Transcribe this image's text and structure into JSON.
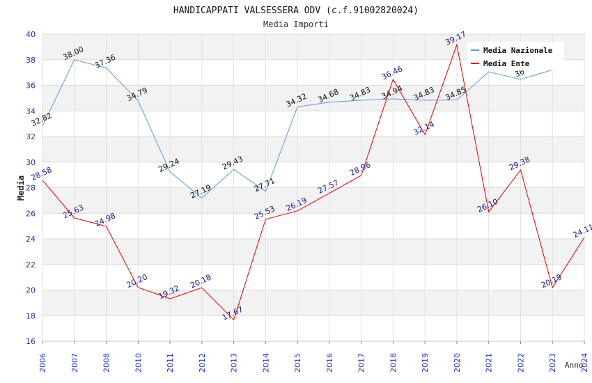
{
  "chart_data": {
    "type": "line",
    "title": "HANDICAPPATI VALSESSERA ODV (c.f.91002820024)",
    "subtitle": "Media Importi",
    "xlabel": "Anno",
    "ylabel": "Media",
    "ylim": [
      16,
      40
    ],
    "yticks": [
      "16",
      "18",
      "20",
      "22",
      "24",
      "26",
      "28",
      "30",
      "32",
      "34",
      "36",
      "38",
      "40"
    ],
    "categories": [
      "2006",
      "2007",
      "2008",
      "2010",
      "2011",
      "2012",
      "2013",
      "2014",
      "2015",
      "2016",
      "2017",
      "2018",
      "2019",
      "2020",
      "2021",
      "2022",
      "2023",
      "2024"
    ],
    "grid": true,
    "legend_position": "top-right",
    "series": [
      {
        "name": "Media Nazionale",
        "color": "#5b9bd5",
        "label_color": "#111111",
        "values": [
          32.82,
          38.0,
          37.36,
          34.79,
          29.24,
          27.19,
          29.43,
          27.71,
          34.32,
          34.68,
          34.83,
          34.94,
          34.83,
          34.85,
          37.05,
          36.46,
          37.2,
          null
        ],
        "labels": [
          "32.82",
          "38.00",
          "37.36",
          "34.79",
          "29.24",
          "27.19",
          "29.43",
          "27.71",
          "34.32",
          "34.68",
          "34.83",
          "34.94",
          "34.83",
          "34.85",
          "",
          "36",
          "",
          ""
        ]
      },
      {
        "name": "Media Ente",
        "color": "#e00000",
        "label_color": "#1a1a8c",
        "values": [
          28.58,
          25.63,
          24.98,
          20.2,
          19.32,
          20.18,
          17.67,
          25.53,
          26.19,
          27.57,
          28.96,
          36.46,
          32.14,
          39.17,
          26.1,
          29.38,
          20.19,
          24.11
        ],
        "labels": [
          "28.58",
          "25.63",
          "24.98",
          "20.20",
          "19.32",
          "20.18",
          "17.67",
          "25.53",
          "26.19",
          "27.57",
          "28.96",
          "36.46",
          "32.14",
          "39.17",
          "26.10",
          "29.38",
          "20.19",
          "24.11"
        ]
      }
    ]
  }
}
